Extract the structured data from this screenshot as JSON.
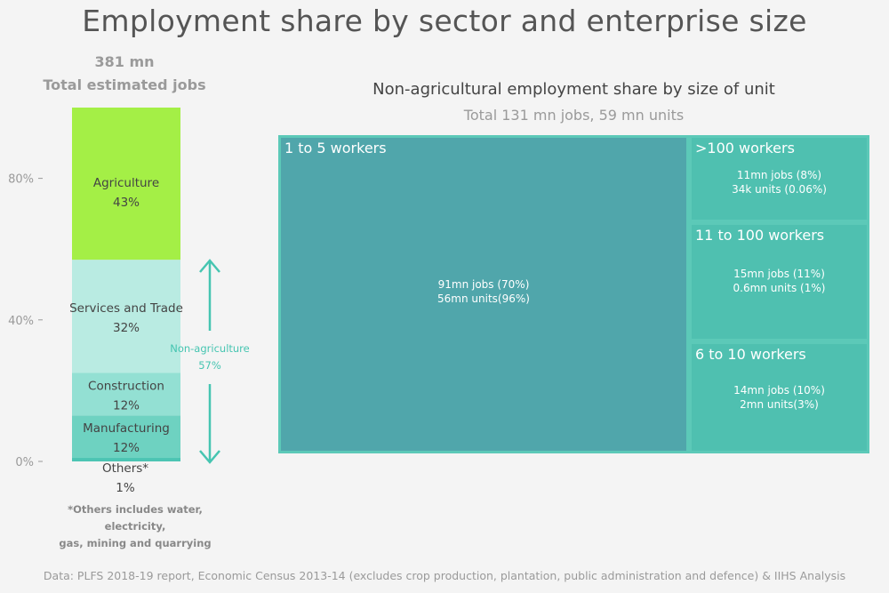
{
  "title": "Employment share by sector and enterprise size",
  "left_panel": {
    "total_value": "381 mn",
    "total_label": "Total estimated jobs",
    "footnote_line1": "*Others includes water, electricity,",
    "footnote_line2": "gas, mining and quarrying",
    "non_agri_label": "Non-agriculture",
    "non_agri_pct": "57%"
  },
  "treemap": {
    "title": "Non-agricultural employment share by size of unit",
    "subtitle": "Total 131 mn jobs, 59 mn units"
  },
  "source": "Data: PLFS 2018-19 report, Economic Census 2013-14 (excludes crop production, plantation, public administration and defence) & IIHS Analysis",
  "colors": {
    "agriculture": "#a4ef46",
    "services": "#b9ebe2",
    "construction": "#93e0d3",
    "manufacturing": "#6ed2c1",
    "others": "#4cc4b3",
    "arrow": "#46c5b1",
    "tile_main": "#50a6ab",
    "tile_other": "#4fc0b0"
  },
  "chart_data": [
    {
      "type": "bar",
      "stacked": true,
      "ylim": [
        0,
        100
      ],
      "yticks": [
        0,
        40,
        80
      ],
      "ytick_labels": [
        "0%",
        "40%",
        "80%"
      ],
      "series": [
        {
          "name": "Others*",
          "value": 1,
          "label": "1%"
        },
        {
          "name": "Manufacturing",
          "value": 12,
          "label": "12%"
        },
        {
          "name": "Construction",
          "value": 12,
          "label": "12%"
        },
        {
          "name": "Services and Trade",
          "value": 32,
          "label": "32%"
        },
        {
          "name": "Agriculture",
          "value": 43,
          "label": "43%"
        }
      ]
    },
    {
      "type": "treemap",
      "items": [
        {
          "name": "1 to 5 workers",
          "jobs_mn": 91,
          "jobs_pct": 70,
          "line1": "91mn jobs (70%)",
          "line2": "56mn units(96%)"
        },
        {
          "name": ">100 workers",
          "jobs_mn": 11,
          "jobs_pct": 8,
          "line1": "11mn jobs (8%)",
          "line2": "34k units (0.06%)"
        },
        {
          "name": "11 to 100 workers",
          "jobs_mn": 15,
          "jobs_pct": 11,
          "line1": "15mn jobs (11%)",
          "line2": "0.6mn units (1%)"
        },
        {
          "name": "6 to 10 workers",
          "jobs_mn": 14,
          "jobs_pct": 10,
          "line1": "14mn jobs (10%)",
          "line2": "2mn units(3%)"
        }
      ]
    }
  ]
}
